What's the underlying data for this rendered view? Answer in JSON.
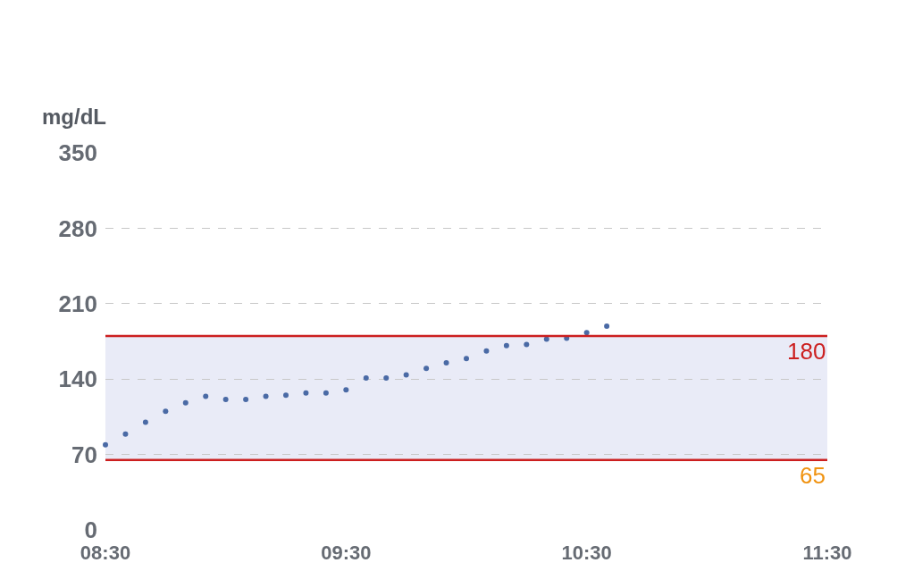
{
  "chart_data": {
    "type": "scatter",
    "ylabel": "mg/dL",
    "x": [
      8.5,
      8.5833,
      8.6667,
      8.75,
      8.8333,
      8.9167,
      9.0,
      9.0833,
      9.1667,
      9.25,
      9.3333,
      9.4167,
      9.5,
      9.5833,
      9.6667,
      9.75,
      9.8333,
      9.9167,
      10.0,
      10.0833,
      10.1667,
      10.25,
      10.3333,
      10.4167,
      10.5,
      10.5833
    ],
    "series": [
      {
        "color": "#4a6aa5",
        "values": [
          79,
          89,
          100,
          110,
          118,
          124,
          121,
          121,
          124,
          125,
          127,
          127,
          130,
          141,
          141,
          144,
          150,
          155,
          159,
          166,
          171,
          172,
          177,
          178,
          183,
          189
        ]
      }
    ],
    "xlim": [
      8.5,
      11.5
    ],
    "xticks": [
      {
        "value": 8.5,
        "label": "08:30"
      },
      {
        "value": 9.5,
        "label": "09:30"
      },
      {
        "value": 10.5,
        "label": "10:30"
      },
      {
        "value": 11.5,
        "label": "11:30"
      }
    ],
    "ylim": [
      0,
      350
    ],
    "yticks": [
      0,
      70,
      140,
      210,
      280,
      350
    ],
    "grid": "y",
    "marker": "circle",
    "bands": [
      {
        "axis": "y",
        "from": 65,
        "to": 180,
        "color": "#e9ebf7"
      }
    ],
    "ref_lines": [
      {
        "axis": "y",
        "value": 180,
        "label": "180",
        "color": "#cc1f1f"
      },
      {
        "axis": "y",
        "value": 65,
        "label": "65",
        "color": "#cc1f1f"
      }
    ]
  }
}
